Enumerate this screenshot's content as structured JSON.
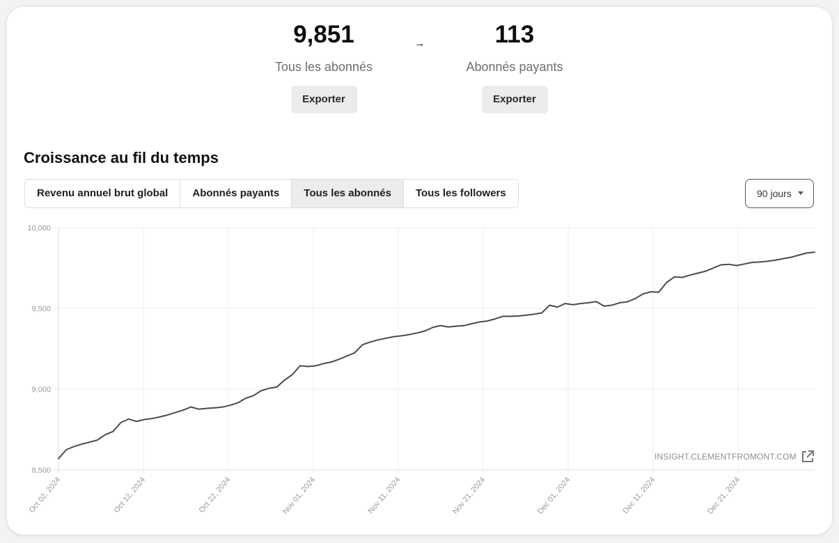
{
  "stats": {
    "all": {
      "value": "9,851",
      "label": "Tous les abonnés",
      "export_label": "Exporter"
    },
    "arrow": "→",
    "paid": {
      "value": "113",
      "label": "Abonnés payants",
      "export_label": "Exporter"
    }
  },
  "section_title": "Croissance au fil du temps",
  "tabs": [
    {
      "label": "Revenu annuel brut global",
      "active": false
    },
    {
      "label": "Abonnés payants",
      "active": false
    },
    {
      "label": "Tous les abonnés",
      "active": true
    },
    {
      "label": "Tous les followers",
      "active": false
    }
  ],
  "range": {
    "selected": "90 jours"
  },
  "watermark": {
    "text": "INSIGHT.CLEMENTFROMONT.COM",
    "icon": "external-link-icon"
  },
  "colors": {
    "line": "#4a4a4a",
    "grid": "#ececec",
    "tick_text": "#999999"
  },
  "chart_data": {
    "type": "line",
    "title": "",
    "xlabel": "",
    "ylabel": "",
    "ylim": [
      8500,
      10000
    ],
    "y_ticks": [
      "8,500",
      "9,000",
      "9,500",
      "10,000"
    ],
    "y_tick_values": [
      8500,
      9000,
      9500,
      10000
    ],
    "x_tick_labels": [
      "Oct 02, 2024",
      "Oct 12, 2024",
      "Oct 22, 2024",
      "Nov 01, 2024",
      "Nov 11, 2024",
      "Nov 21, 2024",
      "Dec 01, 2024",
      "Dec 11, 2024",
      "Dec 21, 2024"
    ],
    "grid": true,
    "legend": "none",
    "series": [
      {
        "values": [
          8570,
          8625,
          8645,
          8660,
          8672,
          8685,
          8718,
          8738,
          8793,
          8815,
          8800,
          8812,
          8818,
          8828,
          8840,
          8855,
          8870,
          8890,
          8876,
          8881,
          8884,
          8889,
          8900,
          8915,
          8943,
          8960,
          8990,
          9005,
          9013,
          9056,
          9090,
          9145,
          9140,
          9145,
          9158,
          9168,
          9185,
          9205,
          9225,
          9275,
          9292,
          9305,
          9315,
          9325,
          9330,
          9338,
          9348,
          9360,
          9382,
          9394,
          9385,
          9390,
          9393,
          9405,
          9416,
          9422,
          9435,
          9451,
          9451,
          9453,
          9458,
          9464,
          9472,
          9520,
          9508,
          9530,
          9523,
          9530,
          9535,
          9542,
          9514,
          9520,
          9535,
          9541,
          9561,
          9590,
          9603,
          9600,
          9660,
          9695,
          9692,
          9706,
          9718,
          9730,
          9750,
          9770,
          9773,
          9765,
          9775,
          9785,
          9787,
          9792,
          9799,
          9808,
          9817,
          9830,
          9843,
          9848
        ]
      }
    ]
  }
}
